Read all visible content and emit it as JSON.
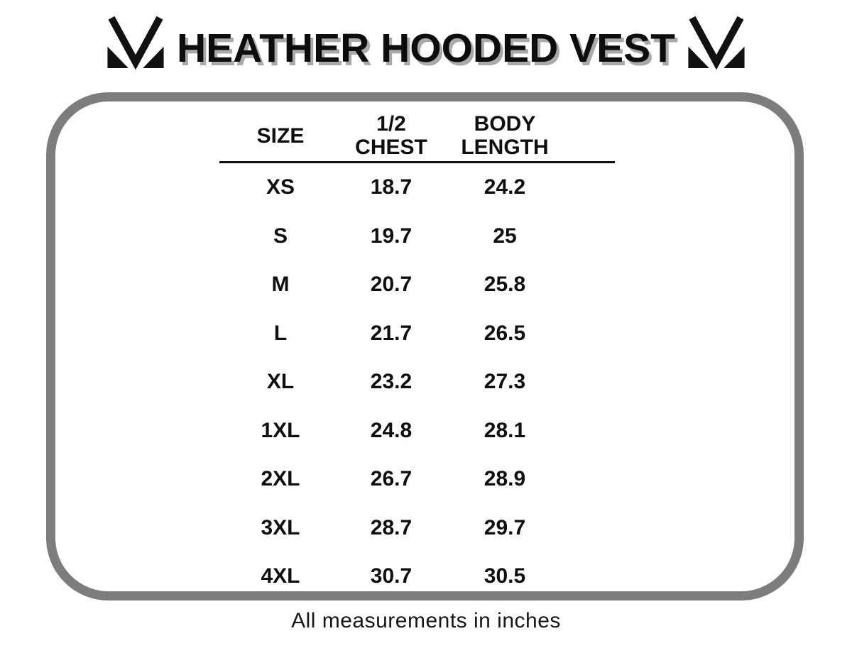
{
  "title": "HEATHER HOODED VEST",
  "icons": {
    "brand_mark": "stylized V/M chevron with corner triangles, solid black"
  },
  "size_chart": {
    "columns": [
      "SIZE",
      "1/2 CHEST",
      "BODY LENGTH"
    ],
    "rows": [
      [
        "XS",
        "18.7",
        "24.2"
      ],
      [
        "S",
        "19.7",
        "25"
      ],
      [
        "M",
        "20.7",
        "25.8"
      ],
      [
        "L",
        "21.7",
        "26.5"
      ],
      [
        "XL",
        "23.2",
        "27.3"
      ],
      [
        "1XL",
        "24.8",
        "28.1"
      ],
      [
        "2XL",
        "26.7",
        "28.9"
      ],
      [
        "3XL",
        "28.7",
        "29.7"
      ],
      [
        "4XL",
        "30.7",
        "30.5"
      ]
    ]
  },
  "footer_note": "All measurements in inches",
  "chart_data": {
    "type": "table",
    "title": "HEATHER HOODED VEST",
    "columns": [
      "SIZE",
      "1/2 CHEST",
      "BODY LENGTH"
    ],
    "rows": [
      [
        "XS",
        18.7,
        24.2
      ],
      [
        "S",
        19.7,
        25
      ],
      [
        "M",
        20.7,
        25.8
      ],
      [
        "L",
        21.7,
        26.5
      ],
      [
        "XL",
        23.2,
        27.3
      ],
      [
        "1XL",
        24.8,
        28.1
      ],
      [
        "2XL",
        26.7,
        28.9
      ],
      [
        "3XL",
        28.7,
        29.7
      ],
      [
        "4XL",
        30.7,
        30.5
      ]
    ],
    "note": "All measurements in inches"
  },
  "colors": {
    "background": "#ffffff",
    "frame_border": "#7d7d7d",
    "title_text": "#0d0d0d",
    "title_shadow": "#a9a9a9",
    "table_text": "#0f0f0f"
  }
}
